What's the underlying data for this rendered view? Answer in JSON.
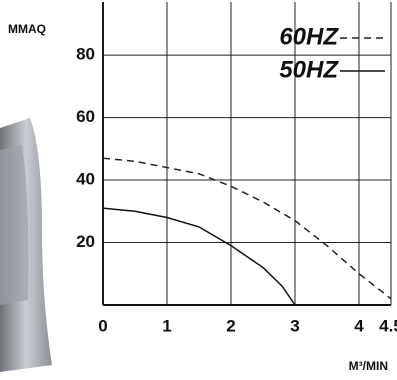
{
  "chart_data": {
    "type": "line",
    "y_label": "MMAQ",
    "x_label": "M³/MIN",
    "xlim": [
      0,
      4.5
    ],
    "xticks": [
      0,
      1,
      2,
      3,
      4,
      4.5
    ],
    "ylim": [
      0,
      97
    ],
    "yticks": [
      20,
      40,
      60,
      80
    ],
    "grid": true,
    "series": [
      {
        "name": "60HZ",
        "color": "#222222",
        "style": "dashed",
        "x": [
          0,
          0.5,
          1,
          1.5,
          2,
          2.5,
          3,
          3.5,
          4,
          4.5
        ],
        "values": [
          47,
          46,
          44,
          42,
          38,
          33,
          27,
          19,
          10,
          2
        ]
      },
      {
        "name": "50HZ",
        "color": "#111111",
        "style": "solid",
        "x": [
          0,
          0.5,
          1,
          1.5,
          2,
          2.5,
          2.8,
          3
        ],
        "values": [
          31,
          30,
          28,
          25,
          19,
          12,
          6,
          0
        ]
      }
    ]
  }
}
